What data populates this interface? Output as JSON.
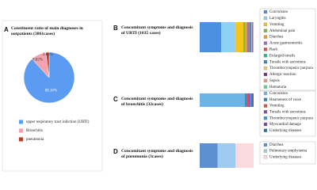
{
  "chart_data": [
    {
      "type": "pie",
      "label": "A",
      "title": "Constituent ratio of main diagnoses in outpatients (3861cases)",
      "categories": [
        "upper respiratory tract infection (URTI)",
        "Bronchitis",
        "pneumonia"
      ],
      "values": [
        88.16,
        9.82,
        2.02
      ],
      "value_labels": [
        "88.16%",
        "9.82%",
        "2.02%"
      ],
      "colors": [
        "#5b9cf2",
        "#f2a3ad",
        "#c0392b"
      ]
    },
    {
      "type": "stacked-bar",
      "label": "B",
      "title": "Concomitant symptoms and diagnosis of URTI (1035 cases)",
      "xlim": [
        0,
        100
      ],
      "series": [
        {
          "name": "Convulsion",
          "color": "#4a8fe0",
          "values": [
            40
          ]
        },
        {
          "name": "Laryngitis",
          "color": "#8fd0f5",
          "values": [
            26
          ]
        },
        {
          "name": "Vomiting",
          "color": "#f5c518",
          "values": [
            15
          ]
        },
        {
          "name": "Abdominal pain",
          "color": "#7cb342",
          "values": [
            3
          ]
        },
        {
          "name": "Diarrhea",
          "color": "#f39c12",
          "values": [
            4
          ]
        },
        {
          "name": "Acute gastroenteritis",
          "color": "#a569bd",
          "values": [
            2
          ]
        },
        {
          "name": "Rash",
          "color": "#e74c3c",
          "values": [
            2
          ]
        },
        {
          "name": "Enlarged tonsils",
          "color": "#1abc9c",
          "values": [
            2
          ]
        },
        {
          "name": "Tonsils with secretions",
          "color": "#2e86c1",
          "values": [
            2
          ]
        },
        {
          "name": "Thrombocytopenic purpura",
          "color": "#f8c471",
          "values": [
            1
          ]
        },
        {
          "name": "Allergic reaction",
          "color": "#6c3483",
          "values": [
            1
          ]
        },
        {
          "name": "Sepsis",
          "color": "#f1948a",
          "values": [
            1
          ]
        },
        {
          "name": "Hematuria",
          "color": "#58d68d",
          "values": [
            1
          ]
        }
      ]
    },
    {
      "type": "stacked-bar",
      "label": "C",
      "title": "Concomitant symptoms and diagnosis of bronchitis (32cases)",
      "xlim": [
        0,
        100
      ],
      "series": [
        {
          "name": "Convulsion",
          "color": "#6cb4e6",
          "values": [
            84
          ]
        },
        {
          "name": "Hoarseness of voice",
          "color": "#2e86c1",
          "values": [
            3
          ]
        },
        {
          "name": "Vomiting",
          "color": "#e74c3c",
          "values": [
            3
          ]
        },
        {
          "name": "Tonsils with secretions",
          "color": "#8e44ad",
          "values": [
            3
          ]
        },
        {
          "name": "Thrombocytopenic purpura",
          "color": "#3498db",
          "values": [
            3
          ]
        },
        {
          "name": "Myocardial damage",
          "color": "#7d3c98",
          "values": [
            2
          ]
        },
        {
          "name": "Underlying diseases",
          "color": "#2874a6",
          "values": [
            2
          ]
        }
      ]
    },
    {
      "type": "stacked-bar",
      "label": "D",
      "title": "Concomitant symptoms and diagnosis of pneumonia (3cases)",
      "xlim": [
        0,
        100
      ],
      "series": [
        {
          "name": "Diarrhea",
          "color": "#5b8fd0",
          "values": [
            33.33
          ]
        },
        {
          "name": "Pulmonary emphysema",
          "color": "#9ecbf0",
          "values": [
            33.33
          ]
        },
        {
          "name": "Underlying diseases",
          "color": "#fadadd",
          "values": [
            33.33
          ]
        }
      ]
    }
  ]
}
